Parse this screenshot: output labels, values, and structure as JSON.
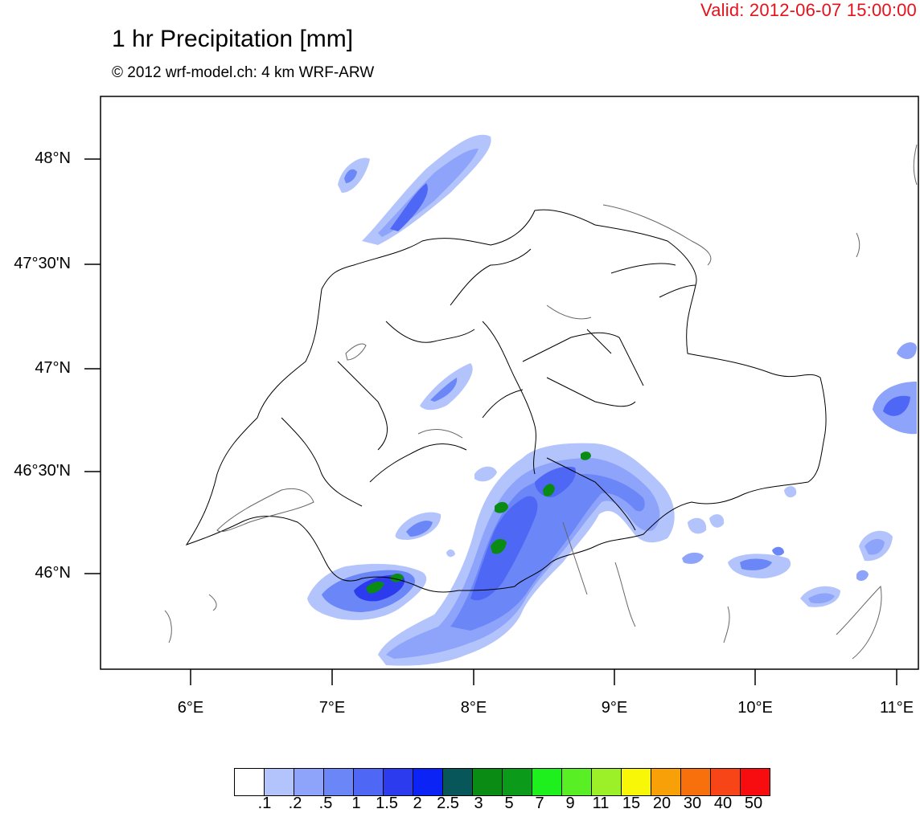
{
  "header": {
    "valid": "Valid: 2012-06-07 15:00:00",
    "title": "1 hr Precipitation [mm]",
    "subtitle": "© 2012 wrf-model.ch: 4 km WRF-ARW"
  },
  "axes": {
    "lat_labels": [
      "48°N",
      "47°30'N",
      "47°N",
      "46°30'N",
      "46°N"
    ],
    "lon_labels": [
      "6°E",
      "7°E",
      "8°E",
      "9°E",
      "10°E",
      "11°E"
    ]
  },
  "legend": {
    "colors": [
      "#ffffff",
      "#b3c3fb",
      "#8ea3fa",
      "#6b86f7",
      "#4f67f5",
      "#2d3bee",
      "#0b23f5",
      "#06565a",
      "#0a8c14",
      "#0b9a1a",
      "#1ef01e",
      "#58f024",
      "#9cf028",
      "#f7f707",
      "#f7a008",
      "#f7700b",
      "#f74518",
      "#f70d10"
    ],
    "labels": [
      ".1",
      ".2",
      ".5",
      "1",
      "1.5",
      "2",
      "2.5",
      "3",
      "5",
      "7",
      "9",
      "11",
      "15",
      "20",
      "30",
      "40",
      "50"
    ]
  }
}
